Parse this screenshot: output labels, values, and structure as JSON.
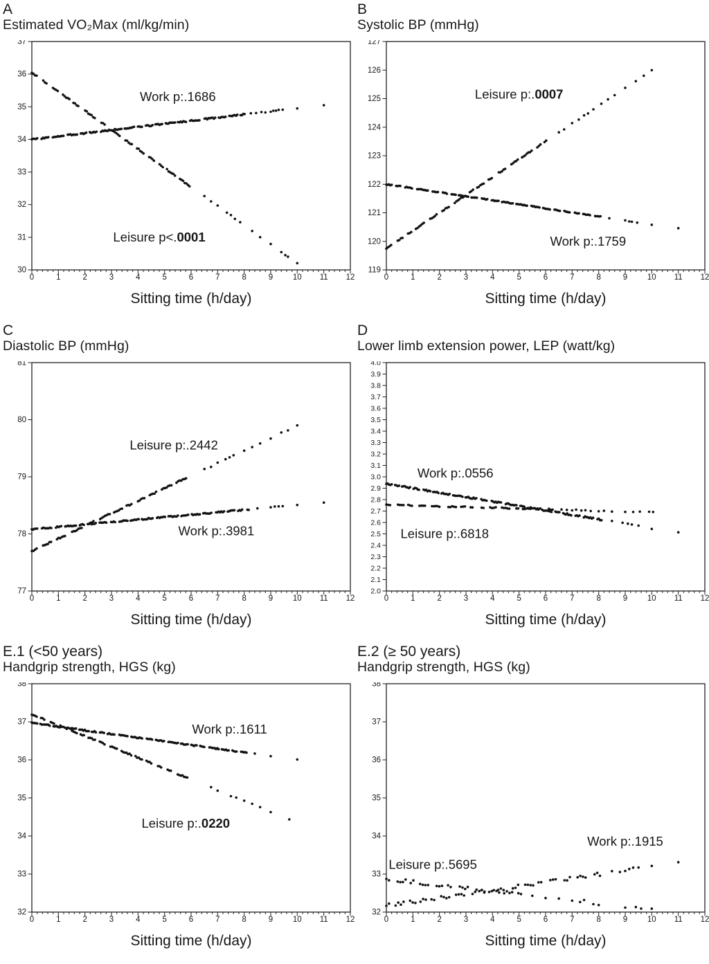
{
  "figure": {
    "background": "#ffffff",
    "dot_color": "#121212",
    "axis_color": "#1f1f1f",
    "text_color": "#161616"
  },
  "chart_data": [
    {
      "type": "scatter",
      "panel_label": "A",
      "title": "Estimated VO₂Max (ml/kg/min)",
      "xlabel": "Sitting time (h/day)",
      "xlim": [
        0,
        12
      ],
      "xminor": 0.2,
      "xticks": [
        0,
        1,
        2,
        3,
        4,
        5,
        6,
        7,
        8,
        9,
        10,
        11,
        12
      ],
      "ylim": [
        30,
        37
      ],
      "ydecimals": 0,
      "yticks": [
        30,
        31,
        32,
        33,
        34,
        35,
        36,
        37
      ],
      "grid": false,
      "series": [
        {
          "name": "Work",
          "x0": 0,
          "y0": 34.0,
          "x1": 11,
          "y1": 35.05,
          "dense_to": 8.05,
          "step": 0.05,
          "sparse_x": [
            8.25,
            8.45,
            8.65,
            8.8,
            9.0,
            9.1,
            9.2,
            9.3,
            9.45,
            10.0,
            11.0
          ],
          "jitter": 0.02,
          "seed": 3
        },
        {
          "name": "Leisure",
          "x0": 0,
          "y0": 36.05,
          "x1": 10,
          "y1": 30.2,
          "dense_to": 6.05,
          "step": 0.06,
          "run": [
            3,
            7
          ],
          "gap": [
            1.5,
            3.5
          ],
          "sparse_x": [
            6.5,
            6.75,
            7.0,
            7.35,
            7.5,
            7.65,
            7.85,
            8.3,
            8.6,
            9.0,
            9.4,
            9.55,
            9.65,
            10.0
          ],
          "jitter": 0.02,
          "seed": 11
        }
      ],
      "annotations": [
        {
          "text": "Work p:.1686",
          "bold": "",
          "cx": 5.5,
          "cy": 35.3
        },
        {
          "text": "Leisure p<.",
          "bold": "0001",
          "cx": 4.8,
          "cy": 31.0
        }
      ]
    },
    {
      "type": "scatter",
      "panel_label": "B",
      "title": "Systolic BP (mmHg)",
      "xlabel": "Sitting time (h/day)",
      "xlim": [
        0,
        12
      ],
      "xminor": 0.2,
      "xticks": [
        0,
        1,
        2,
        3,
        4,
        5,
        6,
        7,
        8,
        9,
        10,
        11,
        12
      ],
      "ylim": [
        119,
        127
      ],
      "ydecimals": 0,
      "yticks": [
        119,
        120,
        121,
        122,
        123,
        124,
        125,
        126,
        127
      ],
      "grid": false,
      "series": [
        {
          "name": "Leisure",
          "x0": 0,
          "y0": 119.75,
          "x1": 10,
          "y1": 126.0,
          "dense_to": 6.05,
          "step": 0.06,
          "run": [
            3,
            7
          ],
          "gap": [
            1.5,
            3.5
          ],
          "sparse_x": [
            6.5,
            6.7,
            7.0,
            7.25,
            7.45,
            7.6,
            7.8,
            8.1,
            8.35,
            8.6,
            9.0,
            9.4,
            9.7,
            10.0
          ],
          "jitter": 0.02,
          "seed": 23
        },
        {
          "name": "Work",
          "x0": 0,
          "y0": 122.0,
          "x1": 11,
          "y1": 120.45,
          "dense_to": 8.1,
          "step": 0.05,
          "sparse_x": [
            8.4,
            9.0,
            9.15,
            9.25,
            9.45,
            10.0,
            11.0
          ],
          "jitter": 0.015,
          "seed": 31
        }
      ],
      "annotations": [
        {
          "text": "Leisure p:.",
          "bold": "0007",
          "cx": 5.0,
          "cy": 125.15
        },
        {
          "text": "Work p:.1759",
          "bold": "",
          "cx": 7.6,
          "cy": 120.0
        }
      ]
    },
    {
      "type": "scatter",
      "panel_label": "C",
      "title": "Diastolic BP (mmHg)",
      "xlabel": "Sitting time (h/day)",
      "xlim": [
        0,
        12
      ],
      "xminor": 0.2,
      "xticks": [
        0,
        1,
        2,
        3,
        4,
        5,
        6,
        7,
        8,
        9,
        10,
        11,
        12
      ],
      "ylim": [
        77,
        81
      ],
      "ydecimals": 0,
      "yticks": [
        77,
        78,
        79,
        80,
        81
      ],
      "grid": false,
      "series": [
        {
          "name": "Leisure",
          "x0": 0,
          "y0": 77.7,
          "x1": 10,
          "y1": 79.9,
          "dense_to": 6.05,
          "step": 0.06,
          "run": [
            3,
            7
          ],
          "gap": [
            1.5,
            3.5
          ],
          "sparse_x": [
            6.5,
            6.75,
            7.0,
            7.3,
            7.45,
            7.6,
            8.0,
            8.3,
            8.6,
            9.0,
            9.4,
            9.65,
            10.0
          ],
          "jitter": 0.012,
          "seed": 47
        },
        {
          "name": "Work",
          "x0": 0,
          "y0": 78.08,
          "x1": 11,
          "y1": 78.55,
          "dense_to": 8.2,
          "step": 0.05,
          "sparse_x": [
            8.5,
            9.0,
            9.15,
            9.3,
            9.45,
            10.0,
            11.0
          ],
          "jitter": 0.01,
          "seed": 59
        }
      ],
      "annotations": [
        {
          "text": "Leisure p:.2442",
          "bold": "",
          "cx": 5.35,
          "cy": 79.55
        },
        {
          "text": "Work p:.3981",
          "bold": "",
          "cx": 6.95,
          "cy": 78.05
        }
      ]
    },
    {
      "type": "scatter",
      "panel_label": "D",
      "title": "Lower limb extension power, LEP (watt/kg)",
      "xlabel": "Sitting time (h/day)",
      "xlim": [
        0,
        12
      ],
      "xminor": 0.2,
      "xticks": [
        0,
        1,
        2,
        3,
        4,
        5,
        6,
        7,
        8,
        9,
        10,
        11,
        12
      ],
      "ylim": [
        2.0,
        4.0
      ],
      "ydecimals": 1,
      "yticks": [
        2.0,
        2.1,
        2.2,
        2.3,
        2.4,
        2.5,
        2.6,
        2.7,
        2.8,
        2.9,
        3.0,
        3.1,
        3.2,
        3.3,
        3.4,
        3.5,
        3.6,
        3.7,
        3.8,
        3.9,
        4.0
      ],
      "grid": false,
      "series": [
        {
          "name": "Work",
          "x0": 0,
          "y0": 2.94,
          "x1": 11,
          "y1": 2.51,
          "dense_to": 8.15,
          "step": 0.05,
          "sparse_x": [
            8.5,
            8.9,
            9.1,
            9.25,
            9.5,
            10.0,
            11.0
          ],
          "jitter": 0.006,
          "seed": 67
        },
        {
          "name": "Leisure",
          "x0": 0,
          "y0": 2.755,
          "x1": 10,
          "y1": 2.69,
          "dense_to": 6.3,
          "step": 0.07,
          "run": [
            2,
            5
          ],
          "gap": [
            1.5,
            4
          ],
          "sparse_x": [
            6.6,
            6.8,
            7.0,
            7.15,
            7.35,
            7.5,
            7.7,
            8.0,
            8.2,
            8.5,
            9.0,
            9.3,
            9.55,
            9.9,
            10.05
          ],
          "jitter": 0.005,
          "seed": 71
        }
      ],
      "annotations": [
        {
          "text": "Work p:.0556",
          "bold": "",
          "cx": 2.6,
          "cy": 3.03
        },
        {
          "text": "Leisure p:.6818",
          "bold": "",
          "cx": 2.2,
          "cy": 2.5
        }
      ]
    },
    {
      "type": "scatter",
      "panel_label": "E.1 (<50 years)",
      "title": "Handgrip strength, HGS (kg)",
      "xlabel": "Sitting time (h/day)",
      "xlim": [
        0,
        12
      ],
      "xminor": 0.2,
      "xticks": [
        0,
        1,
        2,
        3,
        4,
        5,
        6,
        7,
        8,
        9,
        10,
        11,
        12
      ],
      "ylim": [
        32,
        38
      ],
      "ydecimals": 0,
      "yticks": [
        32,
        33,
        34,
        35,
        36,
        37,
        38
      ],
      "grid": false,
      "series": [
        {
          "name": "Work",
          "x0": 0,
          "y0": 36.97,
          "x1": 10,
          "y1": 36.0,
          "dense_to": 8.1,
          "step": 0.05,
          "sparse_x": [
            8.4,
            9.0,
            10.0
          ],
          "jitter": 0.015,
          "seed": 83
        },
        {
          "name": "Leisure",
          "x0": 0,
          "y0": 37.2,
          "x1": 9.7,
          "y1": 34.43,
          "dense_to": 6.05,
          "step": 0.06,
          "run": [
            3,
            7
          ],
          "gap": [
            1.5,
            3.5
          ],
          "sparse_x": [
            6.75,
            7.0,
            7.5,
            7.7,
            8.0,
            8.3,
            8.6,
            9.0,
            9.7
          ],
          "jitter": 0.015,
          "seed": 97
        }
      ],
      "annotations": [
        {
          "text": "Work p:.1611",
          "bold": "",
          "cx": 7.45,
          "cy": 36.8
        },
        {
          "text": "Leisure p:.",
          "bold": "0220",
          "cx": 5.8,
          "cy": 34.33
        }
      ]
    },
    {
      "type": "scatter",
      "panel_label": "E.2 (≥ 50 years)",
      "title": "Handgrip strength, HGS (kg)",
      "xlabel": "Sitting time (h/day)",
      "xlim": [
        0,
        12
      ],
      "xminor": 0.2,
      "xticks": [
        0,
        1,
        2,
        3,
        4,
        5,
        6,
        7,
        8,
        9,
        10,
        11,
        12
      ],
      "ylim": [
        32,
        38
      ],
      "ydecimals": 0,
      "yticks": [
        32,
        33,
        34,
        35,
        36,
        37,
        38
      ],
      "grid": false,
      "series": [
        {
          "name": "Work",
          "x0": 0,
          "y0": 32.17,
          "x1": 11,
          "y1": 33.3,
          "dense_to": 8.05,
          "step": 0.1,
          "run": [
            2,
            4
          ],
          "gap": [
            0.8,
            2.5
          ],
          "sparse_x": [
            8.5,
            8.8,
            9.0,
            9.15,
            9.3,
            9.5,
            10.0,
            11.0
          ],
          "jitter": 0.045,
          "seed": 101
        },
        {
          "name": "Leisure",
          "x0": 0,
          "y0": 32.87,
          "x1": 10,
          "y1": 32.07,
          "dense_to": 5.1,
          "step": 0.1,
          "run": [
            2,
            4
          ],
          "gap": [
            0.8,
            2.5
          ],
          "sparse_x": [
            5.5,
            6.0,
            6.5,
            7.0,
            7.3,
            7.45,
            7.8,
            8.0,
            9.0,
            9.4,
            9.6,
            10.0
          ],
          "jitter": 0.045,
          "seed": 113
        }
      ],
      "annotations": [
        {
          "text": "Leisure p:.5695",
          "bold": "",
          "cx": 1.75,
          "cy": 33.25
        },
        {
          "text": "Work p:.1915",
          "bold": "",
          "cx": 9.0,
          "cy": 33.85
        }
      ]
    }
  ]
}
